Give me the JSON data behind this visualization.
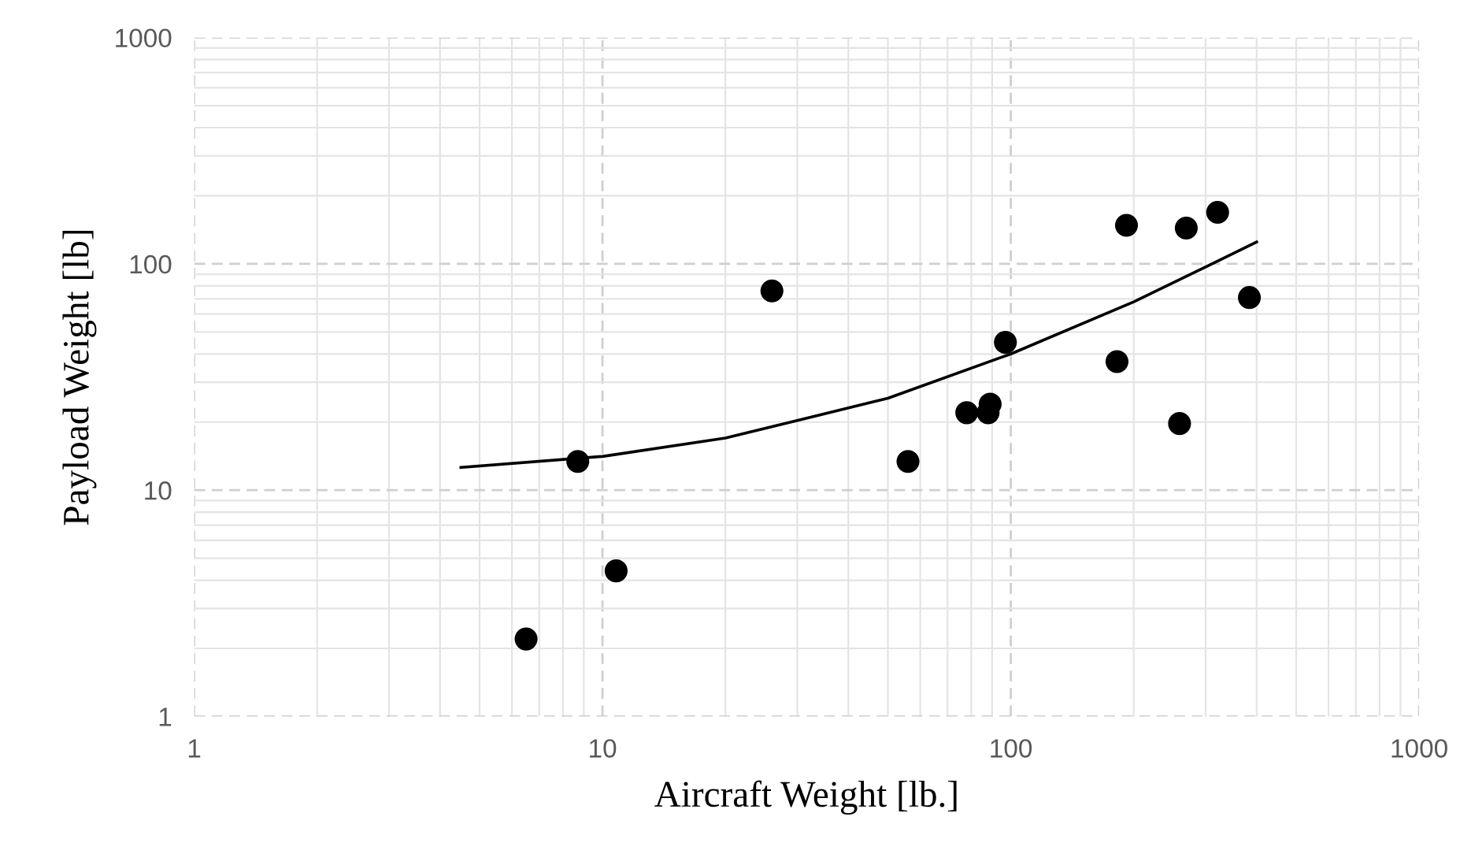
{
  "chart_data": {
    "type": "scatter",
    "xlabel": "Aircraft Weight [lb.]",
    "ylabel": "Payload Weight [lb]",
    "log": "xy",
    "xlim": [
      1,
      1000
    ],
    "ylim": [
      1,
      1000
    ],
    "xticks": [
      1,
      10,
      100,
      1000
    ],
    "yticks": [
      1,
      10,
      100,
      1000
    ],
    "grid": true,
    "series": [
      {
        "type": "scatter",
        "marker": "circle",
        "color": "#000000",
        "x": [
          6.5,
          8.7,
          10.8,
          26,
          56,
          78,
          88,
          89,
          97,
          182,
          192,
          259,
          269,
          321,
          384
        ],
        "values": [
          2.2,
          13.4,
          4.4,
          76,
          13.4,
          22,
          22,
          24,
          45,
          37,
          148,
          19.7,
          144,
          169,
          71
        ]
      },
      {
        "type": "line",
        "color": "#000000",
        "x": [
          4.5,
          10,
          20,
          50,
          100,
          200,
          300,
          400
        ],
        "values": [
          12.6,
          14.1,
          17,
          25.5,
          40,
          68,
          97,
          125
        ]
      }
    ]
  }
}
